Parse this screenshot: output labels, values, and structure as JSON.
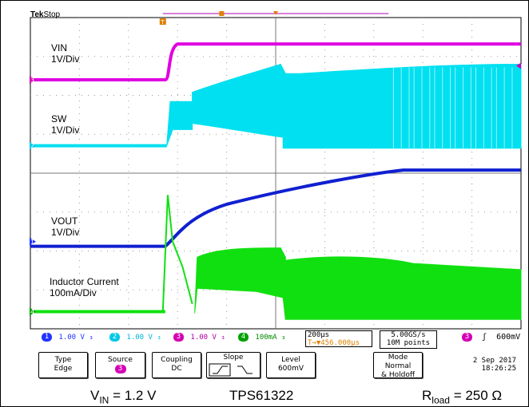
{
  "header": {
    "brand": "Tek",
    "status": "Stop"
  },
  "channel_labels": {
    "vin": {
      "name": "VIN",
      "scale": "1V/Div"
    },
    "sw": {
      "name": "SW",
      "scale": "1V/Div"
    },
    "vout": {
      "name": "VOUT",
      "scale": "1V/Div"
    },
    "il": {
      "name": "Inductor Current",
      "scale": "100mA/Div"
    }
  },
  "markers": {
    "trigger": "T",
    "ch1": "1",
    "ch2": "2",
    "ch3": "3",
    "ch4": "4"
  },
  "channels": [
    {
      "num": "1",
      "value": "1.00 V",
      "color": "#2233ff"
    },
    {
      "num": "2",
      "value": "1.00 V",
      "color": "#00c8e6"
    },
    {
      "num": "3",
      "value": "1.00 V",
      "color": "#d400b4"
    },
    {
      "num": "4",
      "value": "100mA",
      "color": "#00a000"
    }
  ],
  "timebase": {
    "scale": "200µs",
    "delay": "T→▼456.000µs"
  },
  "acquisition": {
    "rate": "5.00GS/s",
    "points": "10M points"
  },
  "trigger_readout": {
    "source": "3",
    "slope_symbol": "ʃ",
    "level": "600mV"
  },
  "softkeys": {
    "type": {
      "title": "Type",
      "value": "Edge"
    },
    "source": {
      "title": "Source",
      "value": "3"
    },
    "coupling": {
      "title": "Coupling",
      "value": "DC"
    },
    "slope": {
      "title": "Slope"
    },
    "level": {
      "title": "Level",
      "value": "600mV"
    },
    "mode": {
      "title": "Mode",
      "value1": "Normal",
      "value2": "& Holdoff"
    }
  },
  "datetime": {
    "date": "2 Sep 2017",
    "time": "18:26:25"
  },
  "footer": {
    "vin_text": "V",
    "vin_sub": "IN",
    "vin_val": " = 1.2 V",
    "part": "TPS61322",
    "rload_text": "R",
    "rload_sub": "load",
    "rload_val": " = 250 Ω"
  },
  "colors": {
    "vin": "#e000e0",
    "sw": "#00e0f0",
    "vout": "#1020d0",
    "il": "#10e010",
    "grid": "#9a9a9a"
  }
}
